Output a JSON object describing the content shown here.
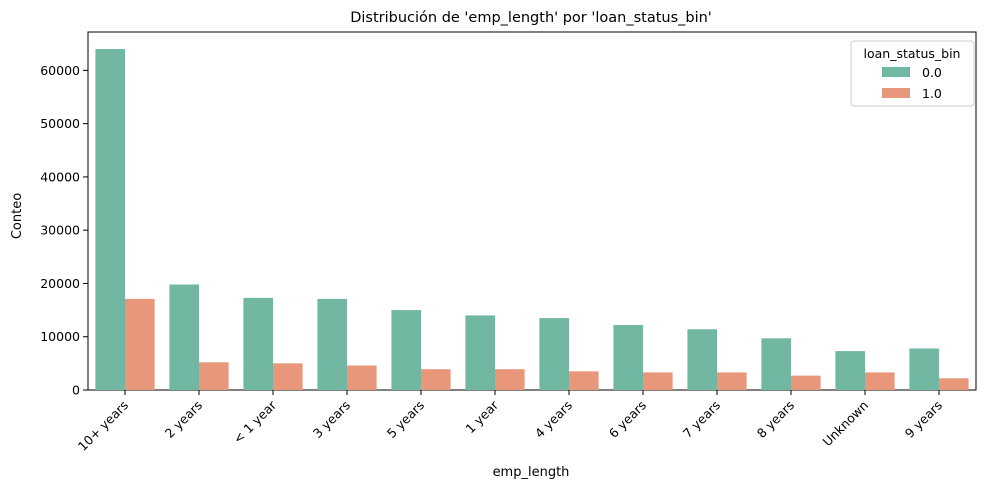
{
  "chart_data": {
    "type": "bar",
    "title": "Distribución de 'emp_length' por 'loan_status_bin'",
    "xlabel": "emp_length",
    "ylabel": "Conteo",
    "categories": [
      "10+ years",
      "2 years",
      "< 1 year",
      "3 years",
      "5 years",
      "1 year",
      "4 years",
      "6 years",
      "7 years",
      "8 years",
      "Unknown",
      "9 years"
    ],
    "series": [
      {
        "name": "0.0",
        "color": "#72b7a1",
        "values": [
          64000,
          19800,
          17300,
          17100,
          15000,
          14000,
          13500,
          12200,
          11400,
          9700,
          7300,
          7800
        ]
      },
      {
        "name": "1.0",
        "color": "#e8977a",
        "values": [
          17100,
          5200,
          5000,
          4600,
          3900,
          3900,
          3500,
          3300,
          3300,
          2700,
          3300,
          2200
        ]
      }
    ],
    "ylim": [
      0,
      67200
    ],
    "yticks": [
      0,
      10000,
      20000,
      30000,
      40000,
      50000,
      60000
    ],
    "grid": false,
    "legend": {
      "title": "loan_status_bin",
      "position": "top-right"
    }
  }
}
